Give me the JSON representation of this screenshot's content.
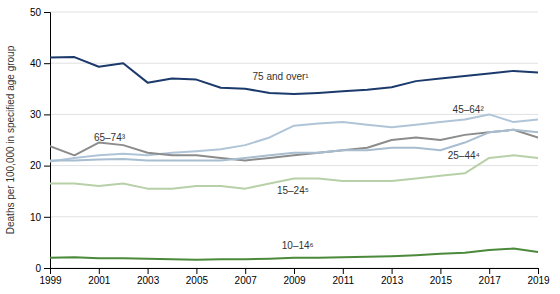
{
  "chart_data": {
    "type": "line",
    "x": [
      1999,
      2000,
      2001,
      2002,
      2003,
      2004,
      2005,
      2006,
      2007,
      2008,
      2009,
      2010,
      2011,
      2012,
      2013,
      2014,
      2015,
      2016,
      2017,
      2018,
      2019
    ],
    "series": [
      {
        "color": "#1b3a6b",
        "values": [
          41.1,
          41.2,
          39.3,
          40.0,
          36.2,
          37.0,
          36.8,
          35.2,
          35.0,
          34.2,
          34.0,
          34.2,
          34.5,
          34.8,
          35.3,
          36.5,
          37.0,
          37.5,
          38.0,
          38.5,
          38.2
        ]
      },
      {
        "color": "#b0c4d8",
        "values": [
          20.8,
          21.5,
          22.0,
          22.3,
          22.0,
          22.5,
          22.8,
          23.2,
          24.0,
          25.5,
          27.8,
          28.2,
          28.5,
          28.0,
          27.5,
          28.0,
          28.5,
          29.0,
          30.0,
          28.5,
          29.0
        ]
      },
      {
        "color": "#8c8c8c",
        "values": [
          23.8,
          22.0,
          24.5,
          24.0,
          22.5,
          22.0,
          22.0,
          21.5,
          21.0,
          21.5,
          22.0,
          22.5,
          23.0,
          23.5,
          25.0,
          25.5,
          25.0,
          26.0,
          26.5,
          27.0,
          25.5
        ]
      },
      {
        "color": "#a8bdd0",
        "values": [
          21.0,
          21.0,
          21.2,
          21.3,
          21.0,
          21.0,
          21.0,
          21.0,
          21.5,
          22.0,
          22.5,
          22.5,
          23.0,
          23.0,
          23.5,
          23.5,
          23.0,
          24.5,
          26.5,
          27.0,
          26.5
        ]
      },
      {
        "color": "#b8d0a8",
        "values": [
          16.5,
          16.5,
          16.0,
          16.5,
          15.5,
          15.5,
          16.0,
          16.0,
          15.5,
          16.5,
          17.5,
          17.5,
          17.0,
          17.0,
          17.0,
          17.5,
          18.0,
          18.5,
          21.5,
          22.0,
          21.5
        ]
      },
      {
        "color": "#4a8a3a",
        "values": [
          2.0,
          2.1,
          1.9,
          1.9,
          1.8,
          1.7,
          1.6,
          1.7,
          1.7,
          1.8,
          2.0,
          2.0,
          2.1,
          2.2,
          2.3,
          2.5,
          2.8,
          3.0,
          3.5,
          3.8,
          3.1
        ]
      }
    ],
    "annotations": [
      {
        "text": "75 and over¹",
        "x": 2007.3,
        "y": 37.5
      },
      {
        "text": "45–64²",
        "x": 2015.5,
        "y": 31.0
      },
      {
        "text": "65–74³",
        "x": 2000.8,
        "y": 25.5
      },
      {
        "text": "25–44⁴",
        "x": 2015.3,
        "y": 22.0
      },
      {
        "text": "15–24⁵",
        "x": 2008.3,
        "y": 15.2
      },
      {
        "text": "10–14⁶",
        "x": 2008.5,
        "y": 4.3
      }
    ],
    "y_label": "Deaths per 100,000 in specified age group",
    "xlim": [
      1999,
      2019
    ],
    "xticks": [
      1999,
      2001,
      2003,
      2005,
      2007,
      2009,
      2011,
      2013,
      2015,
      2017,
      2019
    ],
    "ylim": [
      0,
      50
    ],
    "yticks": [
      0,
      10,
      20,
      30,
      40,
      50
    ],
    "grid": true
  }
}
